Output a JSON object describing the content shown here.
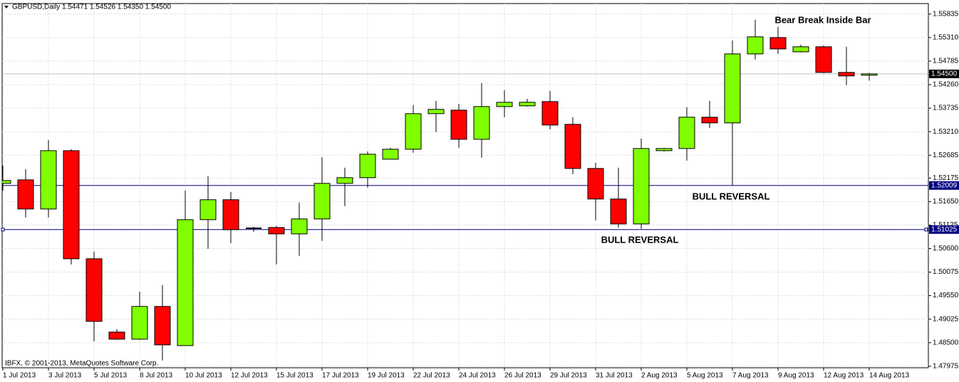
{
  "chart_data": {
    "type": "candlestick",
    "title": "GBPUSD,Daily  1.54471 1.54526 1.54350 1.54500",
    "credit": "IBFX, © 2001-2013, MetaQuotes Software Corp.",
    "categories": [
      "1 Jul 2013",
      null,
      "3 Jul 2013",
      null,
      "5 Jul 2013",
      null,
      "8 Jul 2013",
      null,
      "10 Jul 2013",
      null,
      "12 Jul 2013",
      null,
      "15 Jul 2013",
      null,
      "17 Jul 2013",
      null,
      "19 Jul 2013",
      null,
      "22 Jul 2013",
      null,
      "24 Jul 2013",
      null,
      "26 Jul 2013",
      null,
      "29 Jul 2013",
      null,
      "31 Jul 2013",
      null,
      "2 Aug 2013",
      null,
      "5 Aug 2013",
      null,
      "7 Aug 2013",
      null,
      "9 Aug 2013",
      null,
      "12 Aug 2013",
      null,
      "14 Aug 2013"
    ],
    "open": [
      1.52056,
      1.52135,
      1.51484,
      1.52786,
      1.50373,
      1.48737,
      1.48578,
      1.49309,
      1.48435,
      1.51246,
      1.51691,
      1.51055,
      1.51071,
      1.50928,
      1.51262,
      1.52056,
      1.52183,
      1.52596,
      1.52818,
      1.53612,
      1.53691,
      1.5304,
      1.53771,
      1.53787,
      1.53882,
      1.53374,
      1.52389,
      1.51707,
      1.51151,
      1.52786,
      1.52834,
      1.53533,
      1.53406,
      1.54946,
      1.55311,
      1.54993,
      1.55105,
      1.54533,
      1.54471
    ],
    "high": [
      1.52453,
      1.52373,
      1.53024,
      1.52818,
      1.50532,
      1.48801,
      1.49642,
      1.49785,
      1.51897,
      1.52215,
      1.51865,
      1.51087,
      1.51103,
      1.51627,
      1.52643,
      1.52405,
      1.5277,
      1.5285,
      1.53803,
      1.53898,
      1.53834,
      1.54295,
      1.54136,
      1.53945,
      1.5412,
      1.53533,
      1.52516,
      1.52405,
      1.53056,
      1.5285,
      1.53755,
      1.53898,
      1.55247,
      1.55708,
      1.55549,
      1.55152,
      1.55136,
      1.55105,
      1.54526
    ],
    "low": [
      1.51897,
      1.51294,
      1.51294,
      1.50246,
      1.48531,
      1.48563,
      1.48563,
      1.48102,
      1.48435,
      1.50595,
      1.50722,
      1.50976,
      1.50246,
      1.50436,
      1.5077,
      1.51548,
      1.51961,
      1.52596,
      1.52739,
      1.53199,
      1.5285,
      1.52627,
      1.53533,
      1.53771,
      1.53263,
      1.52262,
      1.5123,
      1.51071,
      1.5104,
      1.5277,
      1.52564,
      1.53294,
      1.52008,
      1.54819,
      1.54946,
      1.54978,
      1.54517,
      1.54247,
      1.5435
    ],
    "close": [
      1.52119,
      1.51484,
      1.52786,
      1.50373,
      1.48975,
      1.48578,
      1.49309,
      1.48451,
      1.51246,
      1.51691,
      1.51024,
      1.51055,
      1.50928,
      1.51262,
      1.52056,
      1.52183,
      1.52707,
      1.52818,
      1.53612,
      1.53707,
      1.5304,
      1.53771,
      1.53866,
      1.53866,
      1.53358,
      1.52389,
      1.51707,
      1.51151,
      1.52834,
      1.52834,
      1.53533,
      1.53406,
      1.54946,
      1.55327,
      1.55057,
      1.55105,
      1.54533,
      1.54454,
      1.545
    ],
    "up_color": "#80ff00",
    "down_color": "#ff0000",
    "doji_color": "#000000",
    "ylim": [
      1.4794,
      1.5607
    ],
    "yticks": [
      1.55835,
      {
        "value": 1.5531,
        "label": "1.55310"
      },
      1.54785,
      {
        "value": 1.5426,
        "label": "1.54260"
      },
      1.53735,
      {
        "value": 1.5321,
        "label": "1.53210"
      },
      1.52685,
      1.52175,
      {
        "value": 1.5165,
        "label": "1.51650"
      },
      1.51125,
      {
        "value": 1.506,
        "label": "1.50600"
      },
      1.50075,
      {
        "value": 1.4955,
        "label": "1.49550"
      },
      1.49025,
      {
        "value": 1.485,
        "label": "1.48500"
      },
      1.47975
    ],
    "grid": true,
    "levels": [
      1.52009,
      1.51025
    ],
    "level_color": "#000080",
    "last_price": {
      "value": 1.545,
      "label": "1.54500"
    },
    "last_price_color": "#c0c0c0",
    "annotations": [
      "Bear Break Inside Bar",
      "BULL REVERSAL",
      "BULL REVERSAL"
    ]
  }
}
